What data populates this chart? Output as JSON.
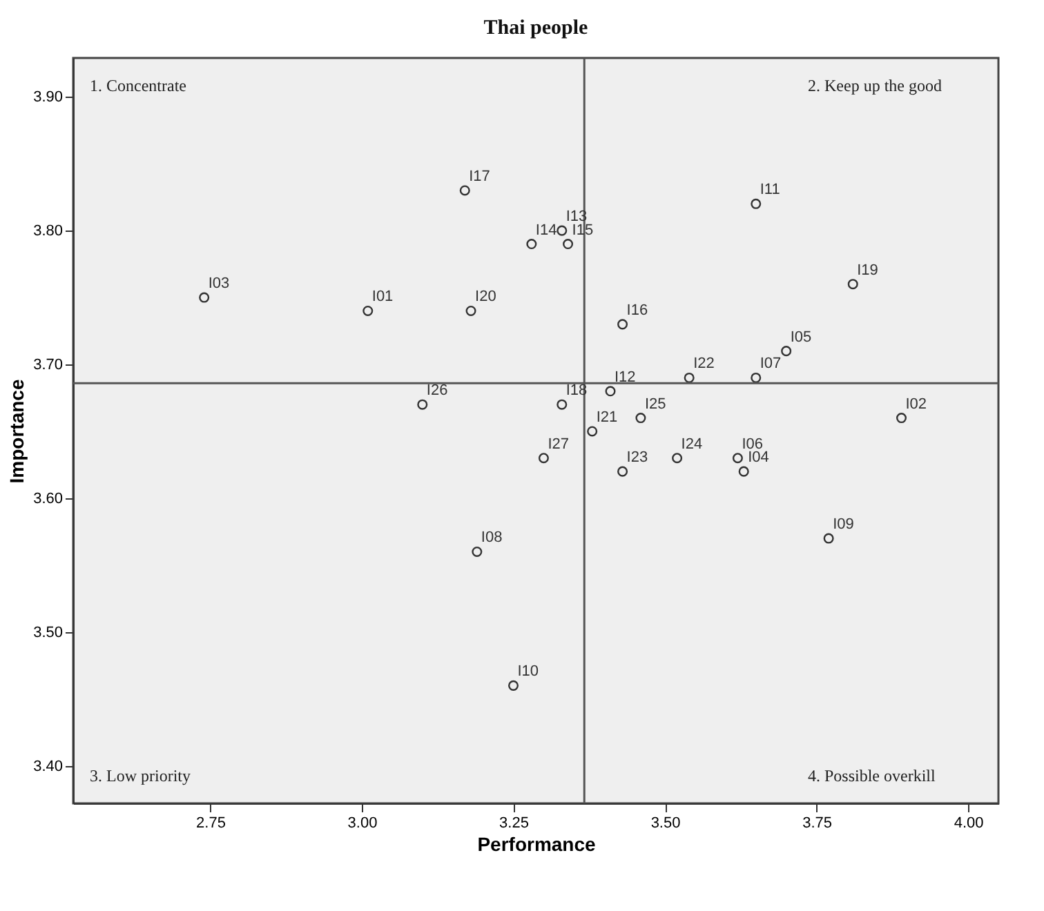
{
  "chart_data": {
    "type": "scatter",
    "title": "Thai people",
    "xlabel": "Performance",
    "ylabel": "Importance",
    "x": [
      2.74,
      3.01,
      3.17,
      3.18,
      3.1,
      3.33,
      3.28,
      3.34,
      3.65,
      3.81,
      3.43,
      3.7,
      3.54,
      3.65,
      3.41,
      3.33,
      3.46,
      3.89,
      3.38,
      3.3,
      3.52,
      3.62,
      3.43,
      3.63,
      3.77,
      3.25,
      3.19
    ],
    "series": [
      {
        "color": "#333333",
        "values": [
          3.75,
          3.74,
          3.83,
          3.74,
          3.67,
          3.8,
          3.79,
          3.79,
          3.82,
          3.76,
          3.73,
          3.71,
          3.69,
          3.69,
          3.68,
          3.67,
          3.66,
          3.66,
          3.65,
          3.63,
          3.63,
          3.63,
          3.62,
          3.62,
          3.57,
          3.46,
          3.56
        ]
      }
    ],
    "marker": "circle",
    "grid": false,
    "legend": false,
    "xlim": [
      2.524,
      4.05
    ],
    "xticks": [
      2.75,
      {
        "value": 3.0,
        "label": "3.00"
      },
      3.25,
      {
        "value": 3.5,
        "label": "3.50"
      },
      3.75,
      {
        "value": 4.0,
        "label": "4.00"
      }
    ],
    "ylim": [
      3.372,
      3.929
    ],
    "yticks": [
      {
        "value": 3.4,
        "label": "3.40"
      },
      {
        "value": 3.5,
        "label": "3.50"
      },
      {
        "value": 3.6,
        "label": "3.60"
      },
      {
        "value": 3.7,
        "label": "3.70"
      },
      {
        "value": 3.8,
        "label": "3.80"
      },
      {
        "value": 3.9,
        "label": "3.90"
      }
    ],
    "ref_lines": [
      {
        "axis": "x",
        "value": 3.367,
        "color": "#555555"
      },
      {
        "axis": "y",
        "value": 3.686,
        "color": "#555555"
      }
    ],
    "annotations": [
      "1. Concentrate",
      "2. Keep up the good",
      "3. Low priority",
      "4. Possible overkill",
      {
        "text": "I03",
        "x": 2.74,
        "y": 3.75
      },
      {
        "text": "I01",
        "x": 3.01,
        "y": 3.74
      },
      {
        "text": "I17",
        "x": 3.17,
        "y": 3.83
      },
      {
        "text": "I20",
        "x": 3.18,
        "y": 3.74
      },
      {
        "text": "I26",
        "x": 3.1,
        "y": 3.67
      },
      {
        "text": "I13",
        "x": 3.33,
        "y": 3.8
      },
      {
        "text": "I14",
        "x": 3.28,
        "y": 3.79
      },
      {
        "text": "I15",
        "x": 3.34,
        "y": 3.79
      },
      {
        "text": "I11",
        "x": 3.65,
        "y": 3.82
      },
      {
        "text": "I19",
        "x": 3.81,
        "y": 3.76
      },
      {
        "text": "I16",
        "x": 3.43,
        "y": 3.73
      },
      {
        "text": "I05",
        "x": 3.7,
        "y": 3.71
      },
      {
        "text": "I22",
        "x": 3.54,
        "y": 3.69
      },
      {
        "text": "I07",
        "x": 3.65,
        "y": 3.69
      },
      {
        "text": "I12",
        "x": 3.41,
        "y": 3.68
      },
      {
        "text": "I18",
        "x": 3.33,
        "y": 3.67
      },
      {
        "text": "I25",
        "x": 3.46,
        "y": 3.66
      },
      {
        "text": "I02",
        "x": 3.89,
        "y": 3.66
      },
      {
        "text": "I21",
        "x": 3.38,
        "y": 3.65
      },
      {
        "text": "I27",
        "x": 3.3,
        "y": 3.63
      },
      {
        "text": "I24",
        "x": 3.52,
        "y": 3.63
      },
      {
        "text": "I06",
        "x": 3.62,
        "y": 3.63
      },
      {
        "text": "I23",
        "x": 3.43,
        "y": 3.62
      },
      {
        "text": "I04",
        "x": 3.63,
        "y": 3.62
      },
      {
        "text": "I09",
        "x": 3.77,
        "y": 3.57
      },
      {
        "text": "I10",
        "x": 3.25,
        "y": 3.46
      },
      {
        "text": "I08",
        "x": 3.19,
        "y": 3.56
      }
    ]
  }
}
